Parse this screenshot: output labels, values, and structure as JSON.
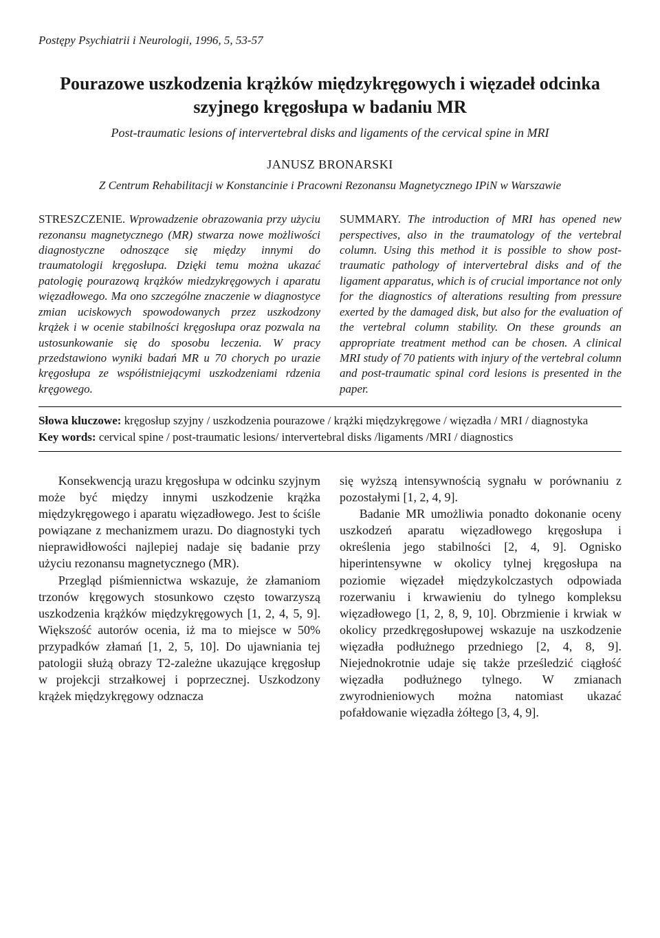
{
  "journal_ref": "Postępy Psychiatrii i Neurologii, 1996, 5, 53-57",
  "title_pl": "Pourazowe uszkodzenia krążków międzykręgowych i więzadeł odcinka szyjnego kręgosłupa w badaniu MR",
  "title_en": "Post-traumatic lesions of intervertebral disks and ligaments of the cervical spine in MRI",
  "author": "JANUSZ BRONARSKI",
  "affiliation": "Z Centrum Rehabilitacji w Konstancinie i Pracowni Rezonansu Magnetycznego IPiN w Warszawie",
  "abstract_pl_label": "STRESZCZENIE.",
  "abstract_pl_body": "Wprowadzenie obrazowania przy użyciu rezonansu magnetycznego (MR) stwarza nowe możliwości diagnostyczne odnoszące się między innymi do traumatologii kręgosłupa. Dzięki temu można ukazać patologię pourazową krążków miedzykręgowych i aparatu więzadłowego. Ma ono szczególne znaczenie w diagnostyce zmian uciskowych spowodowanych przez uszkodzony krążek i w ocenie stabilności kręgosłupa oraz pozwala na ustosunkowanie się do sposobu leczenia. W pracy przedstawiono wyniki badań MR u 70 chorych po urazie kręgosłupa ze współistniejącymi uszkodzeniami rdzenia kręgowego.",
  "abstract_en_label": "SUMMARY.",
  "abstract_en_body": "The introduction of MRI has opened new perspectives, also in the traumatology of the vertebral column. Using this method it is possible to show post-traumatic pathology of intervertebral disks and of the ligament apparatus, which is of crucial importance not only for the diagnostics of alterations resulting from pressure exerted by the damaged disk, but also for the evaluation of the vertebral column stability. On these grounds an appropriate treatment method can be chosen. A clinical MRI study of 70 patients with injury of the vertebral column and post-traumatic spinal cord lesions is presented in the paper.",
  "kw_pl_label": "Słowa kluczowe:",
  "kw_pl_text": " kręgosłup szyjny / uszkodzenia pourazowe / krążki międzykręgowe / więzadła / MRI / diagnostyka",
  "kw_en_label": "Key words:",
  "kw_en_text": " cervical spine / post-traumatic lesions/ intervertebral disks /ligaments /MRI / diagnostics",
  "body_left_p1": "Konsekwencją urazu kręgosłupa w odcinku szyjnym może być między innymi uszkodzenie krążka międzykręgowego i aparatu więzadłowego. Jest to ściśle powiązane z mechanizmem urazu. Do diagnostyki tych nieprawidłowości najlepiej nadaje się badanie przy użyciu rezonansu magnetycznego (MR).",
  "body_left_p2": "Przegląd piśmiennictwa wskazuje, że złamaniom trzonów kręgowych stosunkowo często towarzyszą uszkodzenia krążków międzykręgowych [1, 2, 4, 5, 9]. Większość autorów ocenia, iż ma to miejsce w 50% przypadków złamań [1, 2, 5, 10]. Do ujawniania tej patologii służą obrazy T2-zależne ukazujące kręgosłup w projekcji strzałkowej i poprzecznej. Uszkodzony krążek międzykręgowy odznacza",
  "body_right_p1": "się wyższą intensywnością sygnału w porównaniu z pozostałymi [1, 2, 4, 9].",
  "body_right_p2": "Badanie MR umożliwia ponadto dokonanie oceny uszkodzeń aparatu więzadłowego kręgosłupa i określenia jego stabilności [2, 4, 9]. Ognisko hiperintensywne w okolicy tylnej kręgosłupa na poziomie więzadeł międzykolczastych odpowiada rozerwaniu i krwawieniu do tylnego kompleksu więzadłowego [1, 2, 8, 9, 10]. Obrzmienie i krwiak w okolicy przedkręgosłupowej wskazuje na uszkodzenie więzadła podłużnego przedniego [2, 4, 8, 9]. Niejednokrotnie udaje się także prześledzić ciągłość więzadła podłużnego tylnego. W zmianach zwyrodnieniowych można natomiast ukazać pofałdowanie więzadła żółtego [3, 4, 9]."
}
